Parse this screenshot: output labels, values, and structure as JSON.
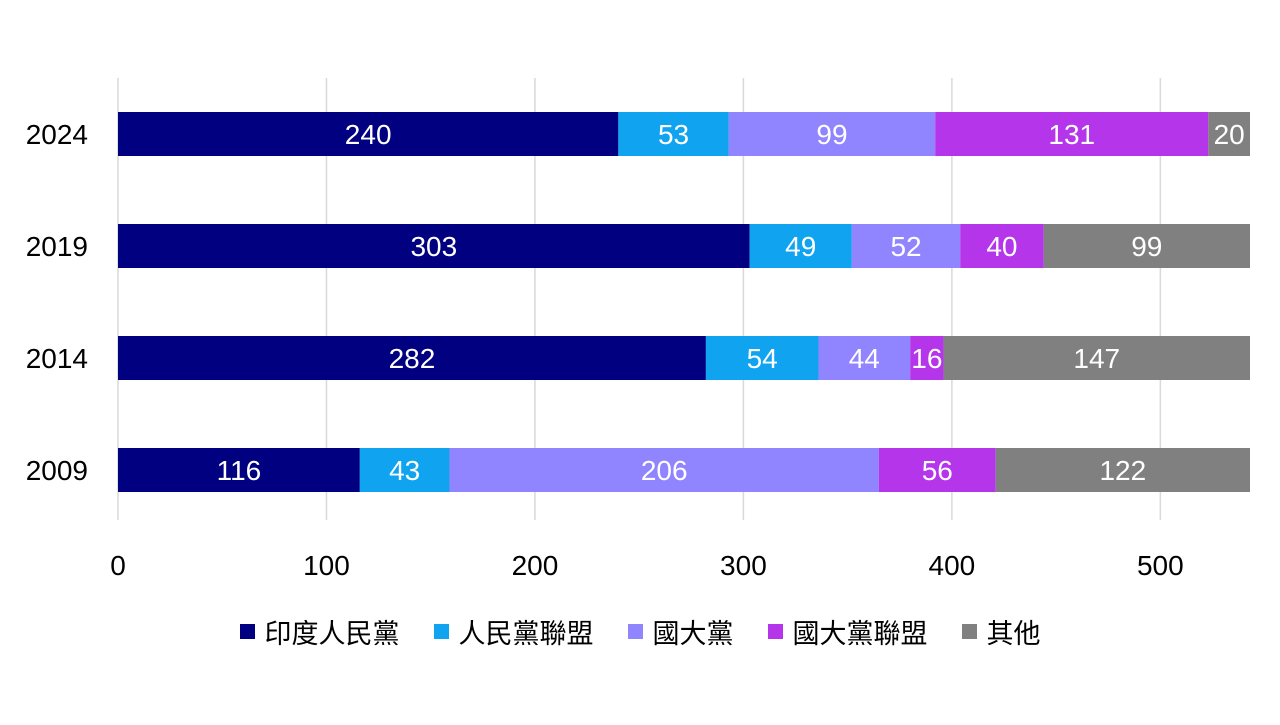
{
  "chart_data": {
    "type": "bar",
    "orientation": "horizontal",
    "stacked": true,
    "title": "",
    "xlabel": "",
    "ylabel": "",
    "categories": [
      "2024",
      "2019",
      "2014",
      "2009"
    ],
    "series": [
      {
        "name": "印度人民黨",
        "color": "#000080",
        "values": [
          240,
          303,
          282,
          116
        ]
      },
      {
        "name": "人民黨聯盟",
        "color": "#0FA3F0",
        "values": [
          53,
          49,
          54,
          43
        ]
      },
      {
        "name": "國大黨",
        "color": "#9184FF",
        "values": [
          99,
          52,
          44,
          206
        ]
      },
      {
        "name": "國大黨聯盟",
        "color": "#B535EA",
        "values": [
          131,
          40,
          16,
          56
        ]
      },
      {
        "name": "其他",
        "color": "#808080",
        "values": [
          20,
          99,
          147,
          122
        ]
      }
    ],
    "xlim": [
      0,
      543
    ],
    "x_ticks": [
      "0",
      "100",
      "200",
      "300",
      "400",
      "500"
    ],
    "x_tick_values": [
      0,
      100,
      200,
      300,
      400,
      500
    ],
    "grid": true,
    "legend_position": "bottom",
    "data_labels": true
  }
}
